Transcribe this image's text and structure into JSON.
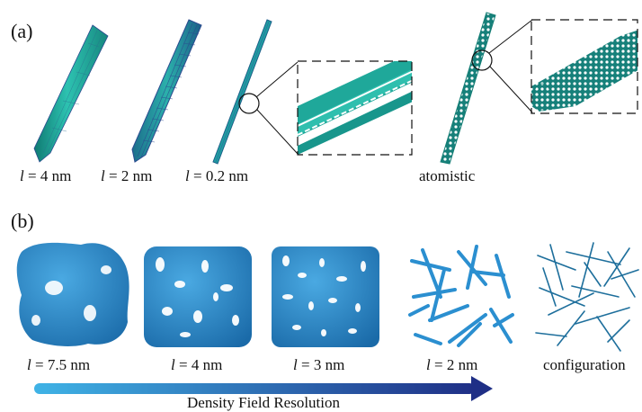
{
  "panel_a": {
    "label": "(a)",
    "captions": [
      {
        "var": "l",
        "rest": " = 4 nm"
      },
      {
        "var": "l",
        "rest": " = 2 nm"
      },
      {
        "var": "l",
        "rest": " = 0.2 nm"
      },
      {
        "text": "atomistic"
      }
    ]
  },
  "panel_b": {
    "label": "(b)",
    "captions": [
      {
        "var": "l",
        "rest": " = 7.5 nm"
      },
      {
        "var": "l",
        "rest": " = 4 nm"
      },
      {
        "var": "l",
        "rest": " = 3 nm"
      },
      {
        "var": "l",
        "rest": " = 2 nm"
      },
      {
        "text": "configuration"
      }
    ],
    "arrow_label": "Density Field Resolution"
  },
  "colors": {
    "teal": "#1fa89a",
    "teal_dark": "#137d74",
    "mesh_blue": "#2b4a8f",
    "blob_blue": "#2b8fd0",
    "blob_dark": "#1c6fae",
    "rod": "#1e6f9c",
    "arrow_start": "#3fb3e6",
    "arrow_end": "#1f2f86"
  }
}
